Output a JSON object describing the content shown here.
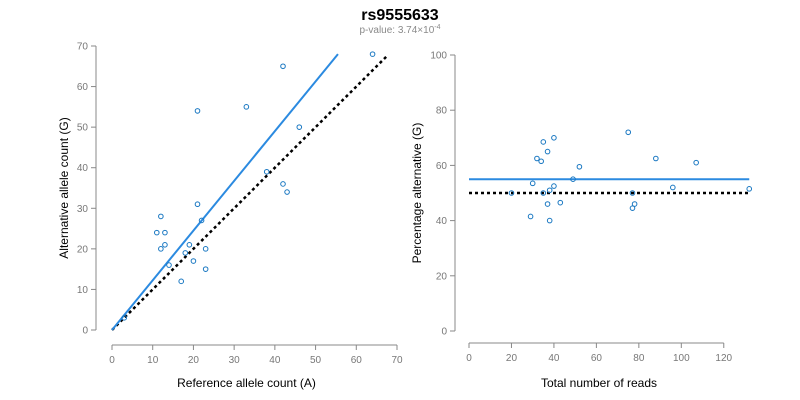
{
  "figure": {
    "title": "rs9555633",
    "subtitle_prefix": "p-value: 3.74×10",
    "subtitle_exponent": "-4",
    "colors": {
      "points": "#1a78c2",
      "fit": "#2b8ae0",
      "reference": "#000000"
    }
  },
  "chart_data": [
    {
      "type": "scatter",
      "title": "",
      "xlabel": "Reference allele count (A)",
      "ylabel": "Alternative allele count (G)",
      "xlim": [
        0,
        70
      ],
      "ylim": [
        0,
        70
      ],
      "xticks": [
        "0",
        "10",
        "20",
        "30",
        "40",
        "50",
        "60",
        "70"
      ],
      "yticks": [
        "0",
        "10",
        "20",
        "30",
        "40",
        "50",
        "60",
        "70"
      ],
      "points": [
        {
          "x": 3,
          "y": 3
        },
        {
          "x": 11,
          "y": 24
        },
        {
          "x": 12,
          "y": 28
        },
        {
          "x": 12,
          "y": 20
        },
        {
          "x": 13,
          "y": 21
        },
        {
          "x": 13,
          "y": 24
        },
        {
          "x": 14,
          "y": 16
        },
        {
          "x": 17,
          "y": 12
        },
        {
          "x": 18,
          "y": 19
        },
        {
          "x": 19,
          "y": 21
        },
        {
          "x": 20,
          "y": 17
        },
        {
          "x": 21,
          "y": 31
        },
        {
          "x": 21,
          "y": 54
        },
        {
          "x": 22,
          "y": 27
        },
        {
          "x": 23,
          "y": 20
        },
        {
          "x": 23,
          "y": 15
        },
        {
          "x": 33,
          "y": 55
        },
        {
          "x": 38,
          "y": 39
        },
        {
          "x": 42,
          "y": 65
        },
        {
          "x": 42,
          "y": 36
        },
        {
          "x": 43,
          "y": 34
        },
        {
          "x": 46,
          "y": 50
        },
        {
          "x": 64,
          "y": 68
        }
      ],
      "fit_line": {
        "x": [
          0,
          55.5
        ],
        "y": [
          0,
          68
        ]
      },
      "reference_line": {
        "x": [
          0,
          67.5
        ],
        "y": [
          0,
          67.5
        ]
      }
    },
    {
      "type": "scatter",
      "title": "",
      "xlabel": "Total number of reads",
      "ylabel": "Percentage alternative (G)",
      "xlim": [
        0,
        130
      ],
      "ylim": [
        0,
        100
      ],
      "xticks": [
        "0",
        "20",
        "40",
        "60",
        "80",
        "100",
        "120"
      ],
      "yticks": [
        "0",
        "20",
        "40",
        "60",
        "80",
        "100"
      ],
      "points": [
        {
          "x": 20,
          "y": 50
        },
        {
          "x": 29,
          "y": 41.5
        },
        {
          "x": 30,
          "y": 53.5
        },
        {
          "x": 32,
          "y": 62.5
        },
        {
          "x": 34,
          "y": 61.5
        },
        {
          "x": 35,
          "y": 68.5
        },
        {
          "x": 35,
          "y": 50
        },
        {
          "x": 37,
          "y": 65
        },
        {
          "x": 37,
          "y": 46
        },
        {
          "x": 38,
          "y": 51
        },
        {
          "x": 38,
          "y": 40
        },
        {
          "x": 40,
          "y": 70
        },
        {
          "x": 40,
          "y": 52.5
        },
        {
          "x": 43,
          "y": 46.5
        },
        {
          "x": 49,
          "y": 55
        },
        {
          "x": 52,
          "y": 59.5
        },
        {
          "x": 75,
          "y": 72
        },
        {
          "x": 77,
          "y": 50
        },
        {
          "x": 77,
          "y": 44.5
        },
        {
          "x": 78,
          "y": 46
        },
        {
          "x": 88,
          "y": 62.5
        },
        {
          "x": 96,
          "y": 52
        },
        {
          "x": 107,
          "y": 61
        },
        {
          "x": 132,
          "y": 51.5
        }
      ],
      "fit_line": {
        "x": [
          0,
          132
        ],
        "y": [
          55,
          55
        ]
      },
      "reference_line": {
        "x": [
          0,
          132
        ],
        "y": [
          50,
          50
        ]
      }
    }
  ]
}
